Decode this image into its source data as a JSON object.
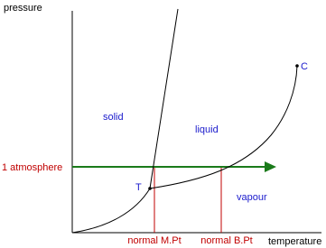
{
  "axes": {
    "y_label": "pressure",
    "x_label": "temperature"
  },
  "regions": {
    "solid": "solid",
    "liquid": "liquid",
    "vapour": "vapour"
  },
  "points": {
    "triple": "T",
    "critical": "C"
  },
  "reference": {
    "pressure_line": "1 atmosphere",
    "melting_point": "normal M.Pt",
    "boiling_point": "normal B.Pt"
  }
}
